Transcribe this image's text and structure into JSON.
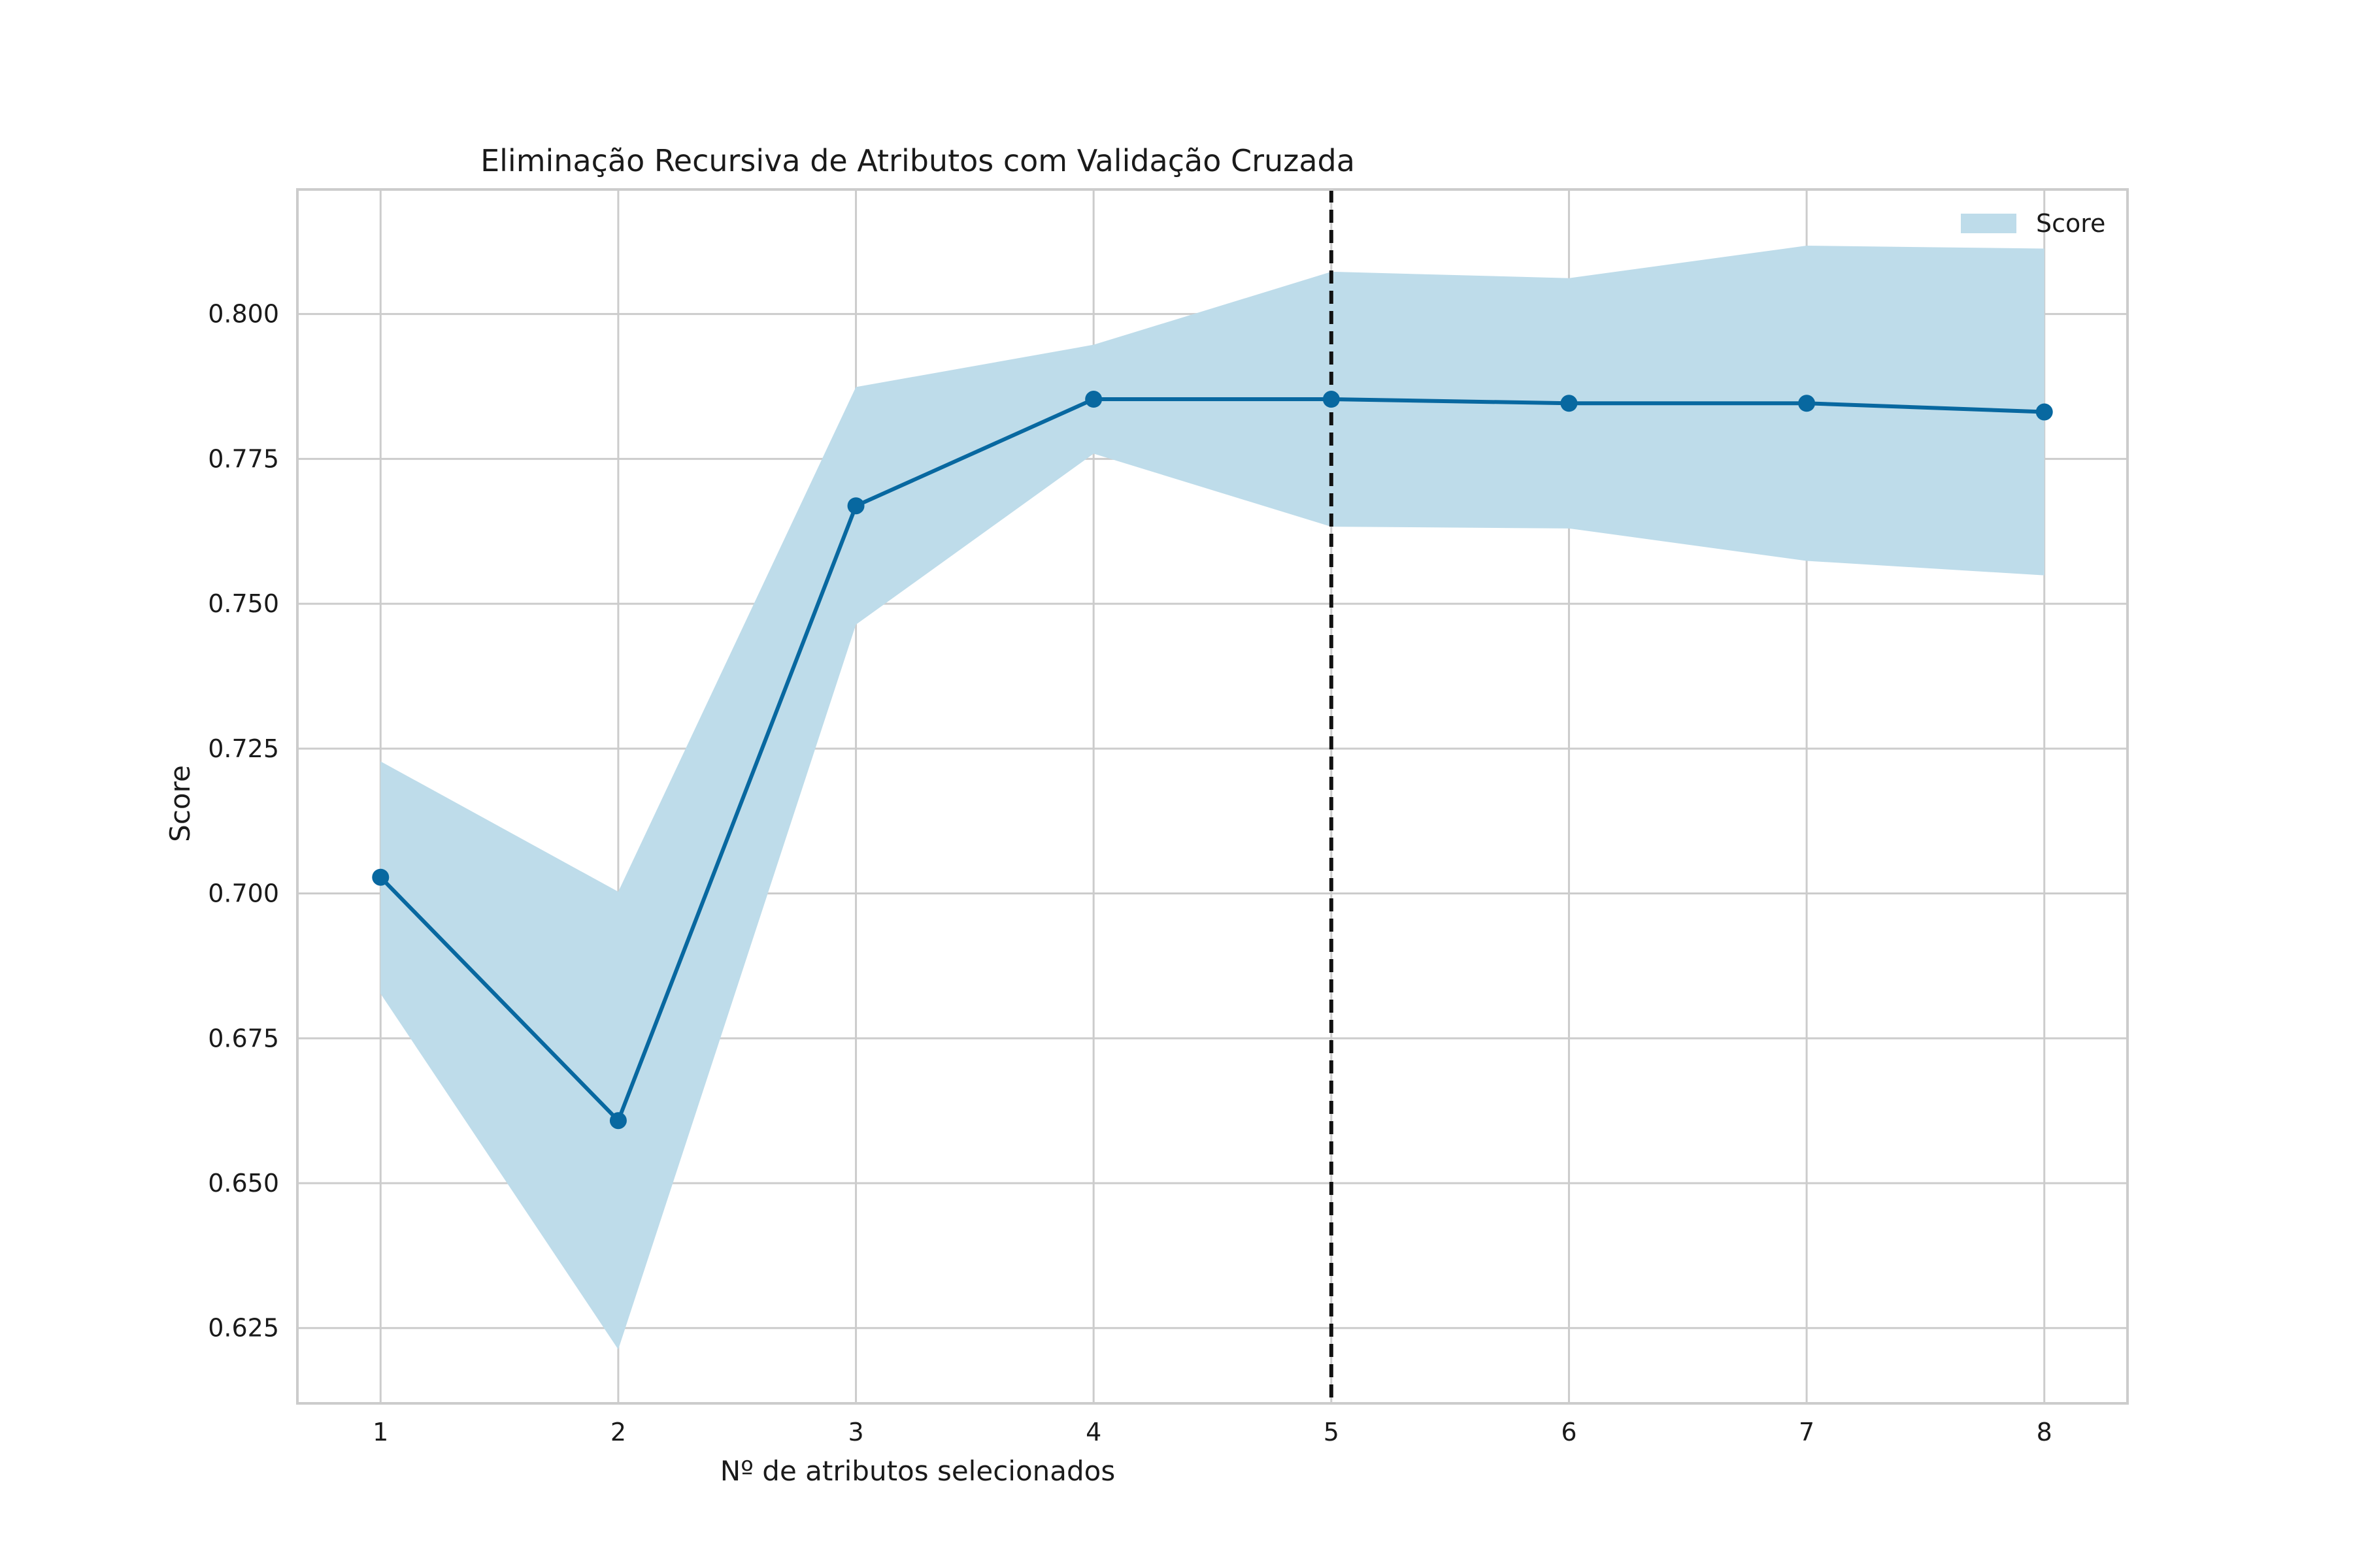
{
  "chart_data": {
    "type": "line",
    "title": "Eliminação Recursiva de Atributos com Validação Cruzada",
    "xlabel": "Nº de atributos selecionados",
    "ylabel": "Score",
    "x": [
      1,
      2,
      3,
      4,
      5,
      6,
      7,
      8
    ],
    "series": [
      {
        "values": [
          0.7028,
          0.6608,
          0.7669,
          0.7853,
          0.7853,
          0.7846,
          0.7846,
          0.7831
        ]
      }
    ],
    "band": {
      "name": "Score",
      "lower": [
        0.6827,
        0.6213,
        0.7464,
        0.7759,
        0.7633,
        0.763,
        0.7574,
        0.7549
      ],
      "upper": [
        0.7228,
        0.7003,
        0.7874,
        0.7947,
        0.8073,
        0.8062,
        0.8118,
        0.8113
      ]
    },
    "selected_x": 5,
    "xlim": [
      0.65,
      8.35
    ],
    "ylim": [
      0.612,
      0.8215
    ],
    "x_ticks": [
      "1",
      "2",
      "3",
      "4",
      "5",
      "6",
      "7",
      "8"
    ],
    "y_ticks": [
      "0.625",
      "0.650",
      "0.675",
      "0.700",
      "0.725",
      "0.750",
      "0.775",
      "0.800"
    ],
    "grid": true,
    "legend_position": "top-right",
    "colors": {
      "line": "#0868a0",
      "band": "#bedcea",
      "grid": "#cccccc",
      "frame": "#cccccc",
      "selected_line": "#111111"
    }
  }
}
